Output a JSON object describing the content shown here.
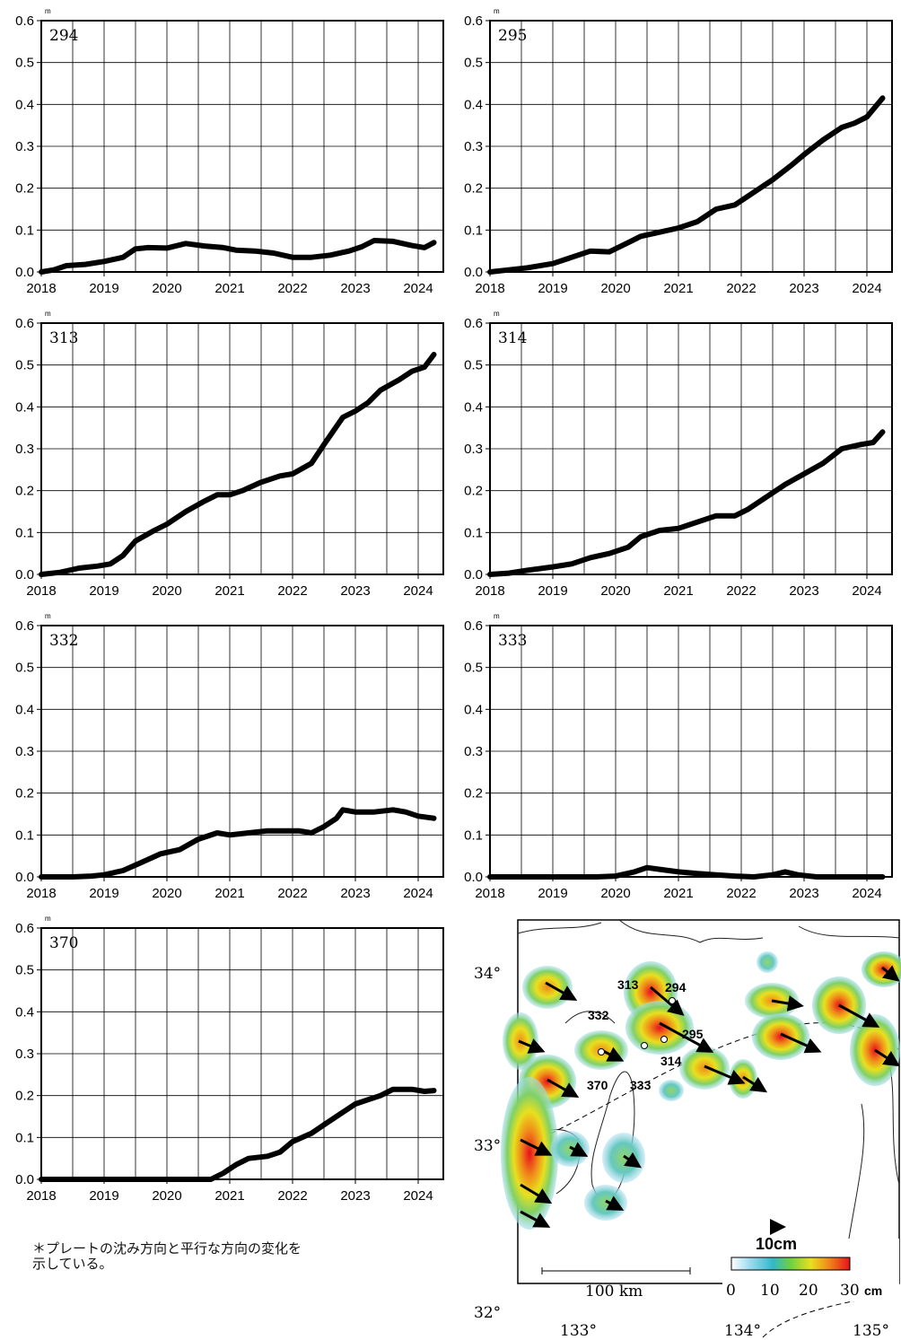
{
  "chart_data": [
    {
      "type": "line",
      "station": "294",
      "unit": "m",
      "ylim": [
        0,
        0.6
      ],
      "xlim": [
        2018,
        2024.4
      ],
      "yticks": [
        "0.0",
        "0.1",
        "0.2",
        "0.3",
        "0.4",
        "0.5",
        "0.6"
      ],
      "xticks": [
        "2018",
        "2019",
        "2020",
        "2021",
        "2022",
        "2023",
        "2024"
      ],
      "grid": true,
      "x": [
        2018.0,
        2018.2,
        2018.4,
        2018.7,
        2019.0,
        2019.3,
        2019.5,
        2019.7,
        2020.0,
        2020.3,
        2020.6,
        2020.9,
        2021.1,
        2021.4,
        2021.7,
        2022.0,
        2022.3,
        2022.6,
        2022.9,
        2023.1,
        2023.3,
        2023.6,
        2023.9,
        2024.1,
        2024.25
      ],
      "y": [
        0.0,
        0.005,
        0.015,
        0.018,
        0.025,
        0.035,
        0.055,
        0.058,
        0.057,
        0.068,
        0.062,
        0.058,
        0.052,
        0.05,
        0.045,
        0.035,
        0.035,
        0.04,
        0.05,
        0.06,
        0.075,
        0.073,
        0.063,
        0.058,
        0.07
      ]
    },
    {
      "type": "line",
      "station": "295",
      "unit": "m",
      "ylim": [
        0,
        0.6
      ],
      "xlim": [
        2018,
        2024.4
      ],
      "yticks": [
        "0.0",
        "0.1",
        "0.2",
        "0.3",
        "0.4",
        "0.5",
        "0.6"
      ],
      "xticks": [
        "2018",
        "2019",
        "2020",
        "2021",
        "2022",
        "2023",
        "2024"
      ],
      "grid": true,
      "x": [
        2018.0,
        2018.3,
        2018.6,
        2019.0,
        2019.3,
        2019.6,
        2019.9,
        2020.2,
        2020.4,
        2020.7,
        2021.0,
        2021.3,
        2021.6,
        2021.9,
        2022.2,
        2022.5,
        2022.8,
        2023.0,
        2023.3,
        2023.6,
        2023.8,
        2024.0,
        2024.25
      ],
      "y": [
        0.0,
        0.005,
        0.01,
        0.02,
        0.035,
        0.05,
        0.048,
        0.07,
        0.085,
        0.095,
        0.105,
        0.12,
        0.15,
        0.16,
        0.19,
        0.22,
        0.255,
        0.28,
        0.315,
        0.345,
        0.355,
        0.37,
        0.415
      ]
    },
    {
      "type": "line",
      "station": "313",
      "unit": "m",
      "ylim": [
        0,
        0.6
      ],
      "xlim": [
        2018,
        2024.4
      ],
      "yticks": [
        "0.0",
        "0.1",
        "0.2",
        "0.3",
        "0.4",
        "0.5",
        "0.6"
      ],
      "xticks": [
        "2018",
        "2019",
        "2020",
        "2021",
        "2022",
        "2023",
        "2024"
      ],
      "grid": true,
      "x": [
        2018.0,
        2018.3,
        2018.6,
        2018.9,
        2019.1,
        2019.3,
        2019.5,
        2019.8,
        2020.0,
        2020.3,
        2020.6,
        2020.8,
        2021.0,
        2021.2,
        2021.5,
        2021.8,
        2022.0,
        2022.3,
        2022.5,
        2022.8,
        2023.0,
        2023.2,
        2023.4,
        2023.7,
        2023.9,
        2024.1,
        2024.25
      ],
      "y": [
        0.0,
        0.005,
        0.015,
        0.02,
        0.025,
        0.045,
        0.08,
        0.105,
        0.12,
        0.15,
        0.175,
        0.19,
        0.19,
        0.2,
        0.22,
        0.235,
        0.24,
        0.265,
        0.31,
        0.375,
        0.39,
        0.41,
        0.44,
        0.465,
        0.485,
        0.495,
        0.525
      ]
    },
    {
      "type": "line",
      "station": "314",
      "unit": "m",
      "ylim": [
        0,
        0.6
      ],
      "xlim": [
        2018,
        2024.4
      ],
      "yticks": [
        "0.0",
        "0.1",
        "0.2",
        "0.3",
        "0.4",
        "0.5",
        "0.6"
      ],
      "xticks": [
        "2018",
        "2019",
        "2020",
        "2021",
        "2022",
        "2023",
        "2024"
      ],
      "grid": true,
      "x": [
        2018.0,
        2018.3,
        2018.6,
        2019.0,
        2019.3,
        2019.6,
        2019.9,
        2020.2,
        2020.4,
        2020.7,
        2021.0,
        2021.3,
        2021.6,
        2021.9,
        2022.1,
        2022.4,
        2022.7,
        2023.0,
        2023.3,
        2023.6,
        2023.9,
        2024.1,
        2024.25
      ],
      "y": [
        0.0,
        0.003,
        0.01,
        0.018,
        0.025,
        0.04,
        0.05,
        0.065,
        0.09,
        0.105,
        0.11,
        0.125,
        0.14,
        0.14,
        0.155,
        0.185,
        0.215,
        0.24,
        0.265,
        0.3,
        0.31,
        0.315,
        0.34
      ]
    },
    {
      "type": "line",
      "station": "332",
      "unit": "m",
      "ylim": [
        0,
        0.6
      ],
      "xlim": [
        2018,
        2024.4
      ],
      "yticks": [
        "0.0",
        "0.1",
        "0.2",
        "0.3",
        "0.4",
        "0.5",
        "0.6"
      ],
      "xticks": [
        "2018",
        "2019",
        "2020",
        "2021",
        "2022",
        "2023",
        "2024"
      ],
      "grid": true,
      "x": [
        2018.0,
        2018.5,
        2018.8,
        2019.0,
        2019.3,
        2019.6,
        2019.9,
        2020.2,
        2020.5,
        2020.8,
        2021.0,
        2021.3,
        2021.6,
        2021.9,
        2022.1,
        2022.3,
        2022.5,
        2022.7,
        2022.8,
        2023.0,
        2023.3,
        2023.6,
        2023.8,
        2024.0,
        2024.25
      ],
      "y": [
        0.0,
        0.0,
        0.002,
        0.005,
        0.015,
        0.035,
        0.055,
        0.065,
        0.09,
        0.105,
        0.1,
        0.105,
        0.11,
        0.11,
        0.11,
        0.105,
        0.12,
        0.14,
        0.16,
        0.155,
        0.155,
        0.16,
        0.155,
        0.145,
        0.14
      ]
    },
    {
      "type": "line",
      "station": "333",
      "unit": "m",
      "ylim": [
        0,
        0.6
      ],
      "xlim": [
        2018,
        2024.4
      ],
      "yticks": [
        "0.0",
        "0.1",
        "0.2",
        "0.3",
        "0.4",
        "0.5",
        "0.6"
      ],
      "xticks": [
        "2018",
        "2019",
        "2020",
        "2021",
        "2022",
        "2023",
        "2024"
      ],
      "grid": true,
      "x": [
        2018.0,
        2019.0,
        2019.7,
        2020.0,
        2020.3,
        2020.5,
        2020.7,
        2021.0,
        2021.3,
        2021.6,
        2021.9,
        2022.2,
        2022.5,
        2022.7,
        2022.9,
        2023.2,
        2023.6,
        2024.0,
        2024.25
      ],
      "y": [
        0.0,
        0.0,
        0.0,
        0.002,
        0.012,
        0.022,
        0.018,
        0.012,
        0.008,
        0.005,
        0.002,
        0.0,
        0.005,
        0.012,
        0.005,
        0.0,
        0.0,
        0.0,
        0.0
      ]
    },
    {
      "type": "line",
      "station": "370",
      "unit": "m",
      "ylim": [
        0,
        0.6
      ],
      "xlim": [
        2018,
        2024.4
      ],
      "yticks": [
        "0.0",
        "0.1",
        "0.2",
        "0.3",
        "0.4",
        "0.5",
        "0.6"
      ],
      "xticks": [
        "2018",
        "2019",
        "2020",
        "2021",
        "2022",
        "2023",
        "2024"
      ],
      "grid": true,
      "x": [
        2018.0,
        2019.0,
        2020.0,
        2020.7,
        2020.9,
        2021.1,
        2021.3,
        2021.6,
        2021.8,
        2022.0,
        2022.3,
        2022.5,
        2022.8,
        2023.0,
        2023.2,
        2023.4,
        2023.6,
        2023.9,
        2024.1,
        2024.25
      ],
      "y": [
        0.0,
        0.0,
        0.0,
        0.0,
        0.015,
        0.035,
        0.05,
        0.055,
        0.065,
        0.09,
        0.11,
        0.13,
        0.16,
        0.18,
        0.19,
        0.2,
        0.215,
        0.215,
        0.21,
        0.212
      ]
    }
  ],
  "note": [
    "＊プレートの沈み方向と平行な方向の変化を",
    "示している。"
  ],
  "map": {
    "lat_labels": [
      "34°",
      "33°",
      "32°"
    ],
    "lon_labels": [
      "133°",
      "134°",
      "135°"
    ],
    "scale_label": "100 km",
    "vector_label": "10cm",
    "colorbar_ticks": [
      "0",
      "10",
      "20",
      "30"
    ],
    "colorbar_unit": "cm",
    "station_labels": [
      "313",
      "294",
      "332",
      "295",
      "314",
      "370",
      "333"
    ]
  }
}
